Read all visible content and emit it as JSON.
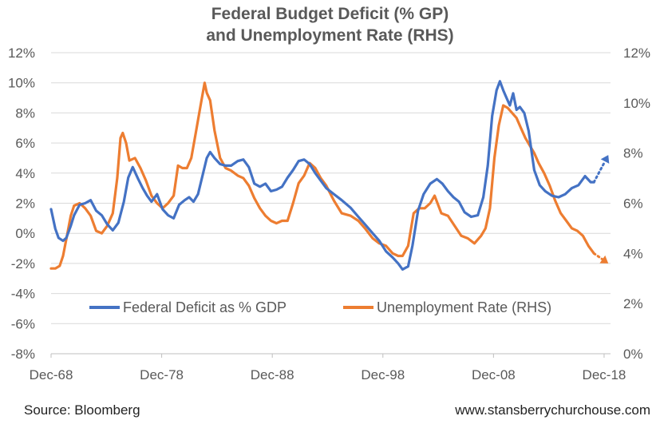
{
  "footer": {
    "source": "Source: Bloomberg",
    "website": "www.stansberrychurchouse.com"
  },
  "chart_data": {
    "type": "line",
    "title": "Federal Budget Deficit (% GP) and Unemployment Rate (RHS)",
    "title_lines": [
      "Federal Budget Deficit (% GP)",
      "and Unemployment Rate (RHS)"
    ],
    "x_range": [
      1968.92,
      2019.5
    ],
    "x_tick_labels": [
      {
        "label": "Dec-68",
        "x": 1968.92
      },
      {
        "label": "Dec-78",
        "x": 1978.92
      },
      {
        "label": "Dec-88",
        "x": 1988.92
      },
      {
        "label": "Dec-98",
        "x": 1998.92
      },
      {
        "label": "Dec-08",
        "x": 2008.92
      },
      {
        "label": "Dec-18",
        "x": 2018.92
      }
    ],
    "y_left": {
      "ylim": [
        -8,
        12
      ],
      "tick_labels": [
        "-8%",
        "-6%",
        "-4%",
        "-2%",
        "0%",
        "2%",
        "4%",
        "6%",
        "8%",
        "10%",
        "12%"
      ],
      "tick_values": [
        -8,
        -6,
        -4,
        -2,
        0,
        2,
        4,
        6,
        8,
        10,
        12
      ]
    },
    "y_right": {
      "ylim": [
        0,
        12
      ],
      "tick_labels": [
        "0%",
        "2%",
        "4%",
        "6%",
        "8%",
        "10%",
        "12%"
      ],
      "tick_values": [
        0,
        2,
        4,
        6,
        8,
        10,
        12
      ]
    },
    "grid": true,
    "legend_position": "bottom-center",
    "series": [
      {
        "name": "Federal Deficit as % GDP",
        "axis": "left",
        "color": "#4472c4",
        "x": [
          1968.92,
          1969.3,
          1969.6,
          1970.0,
          1970.3,
          1970.7,
          1971.0,
          1971.5,
          1972.0,
          1972.5,
          1973.0,
          1973.5,
          1974.0,
          1974.5,
          1975.0,
          1975.5,
          1975.9,
          1976.3,
          1976.8,
          1977.2,
          1977.6,
          1978.0,
          1978.5,
          1979.0,
          1979.5,
          1980.0,
          1980.5,
          1981.0,
          1981.4,
          1981.8,
          1982.2,
          1982.6,
          1983.0,
          1983.3,
          1983.7,
          1984.2,
          1984.7,
          1985.2,
          1985.8,
          1986.3,
          1986.8,
          1987.3,
          1987.8,
          1988.3,
          1988.8,
          1989.3,
          1989.8,
          1990.3,
          1990.8,
          1991.3,
          1991.8,
          1992.3,
          1992.8,
          1993.3,
          1993.8,
          1994.5,
          1995.2,
          1996.0,
          1996.7,
          1997.3,
          1998.0,
          1998.6,
          1999.2,
          1999.8,
          2000.3,
          2000.7,
          2001.2,
          2001.6,
          2002.1,
          2002.6,
          2003.2,
          2003.8,
          2004.3,
          2004.8,
          2005.3,
          2005.8,
          2006.3,
          2006.9,
          2007.5,
          2008.0,
          2008.4,
          2008.8,
          2009.2,
          2009.5,
          2009.8,
          2010.1,
          2010.4,
          2010.7,
          2011.0,
          2011.3,
          2011.7,
          2012.1,
          2012.6,
          2013.1,
          2013.6,
          2014.2,
          2014.8,
          2015.4,
          2016.0,
          2016.6,
          2017.2,
          2017.7,
          2018.0
        ],
        "values": [
          1.6,
          0.3,
          -0.3,
          -0.5,
          -0.3,
          0.5,
          1.2,
          1.9,
          2.0,
          2.2,
          1.5,
          1.2,
          0.6,
          0.2,
          0.7,
          2.1,
          3.7,
          4.4,
          3.6,
          3.0,
          2.5,
          2.1,
          2.6,
          1.6,
          1.2,
          1.0,
          1.9,
          2.2,
          2.4,
          2.1,
          2.6,
          3.8,
          5.0,
          5.4,
          5.0,
          4.6,
          4.5,
          4.5,
          4.8,
          4.9,
          4.4,
          3.3,
          3.1,
          3.3,
          2.8,
          2.9,
          3.1,
          3.7,
          4.2,
          4.8,
          4.9,
          4.6,
          4.0,
          3.5,
          3.0,
          2.6,
          2.2,
          1.7,
          1.1,
          0.6,
          0.0,
          -0.5,
          -1.2,
          -1.6,
          -2.0,
          -2.4,
          -2.2,
          -0.8,
          1.5,
          2.6,
          3.3,
          3.6,
          3.3,
          2.8,
          2.4,
          2.1,
          1.4,
          1.1,
          1.2,
          2.4,
          4.5,
          7.8,
          9.5,
          10.1,
          9.5,
          9.0,
          8.5,
          9.3,
          8.2,
          8.4,
          8.0,
          6.8,
          4.2,
          3.2,
          2.8,
          2.5,
          2.4,
          2.6,
          3.0,
          3.2,
          3.8,
          3.4,
          3.4
        ],
        "projection_x": [
          2018.0,
          2019.3
        ],
        "projection_values": [
          3.4,
          5.2
        ]
      },
      {
        "name": "Unemployment Rate (RHS)",
        "axis": "right",
        "color": "#ed7d31",
        "x": [
          1968.92,
          1969.3,
          1969.7,
          1970.0,
          1970.4,
          1970.7,
          1971.0,
          1971.5,
          1972.0,
          1972.5,
          1973.0,
          1973.5,
          1974.0,
          1974.5,
          1974.9,
          1975.2,
          1975.4,
          1975.7,
          1976.0,
          1976.5,
          1977.0,
          1977.5,
          1978.0,
          1978.5,
          1979.0,
          1979.5,
          1980.0,
          1980.4,
          1980.8,
          1981.2,
          1981.6,
          1982.0,
          1982.4,
          1982.8,
          1983.0,
          1983.3,
          1983.7,
          1984.2,
          1984.7,
          1985.2,
          1985.8,
          1986.3,
          1986.8,
          1987.3,
          1987.8,
          1988.3,
          1988.8,
          1989.3,
          1989.8,
          1990.3,
          1990.8,
          1991.3,
          1991.8,
          1992.3,
          1992.8,
          1993.3,
          1993.8,
          1994.5,
          1995.2,
          1996.0,
          1996.7,
          1997.3,
          1998.0,
          1998.6,
          1999.2,
          1999.8,
          2000.3,
          2000.7,
          2001.2,
          2001.7,
          2002.2,
          2002.7,
          2003.2,
          2003.6,
          2004.2,
          2004.8,
          2005.4,
          2006.0,
          2006.6,
          2007.2,
          2007.8,
          2008.2,
          2008.6,
          2009.0,
          2009.4,
          2009.8,
          2010.2,
          2010.6,
          2011.0,
          2011.4,
          2011.8,
          2012.2,
          2012.6,
          2013.0,
          2013.5,
          2014.0,
          2014.5,
          2015.0,
          2015.5,
          2016.0,
          2016.5,
          2017.0,
          2017.5,
          2018.0
        ],
        "values": [
          3.4,
          3.4,
          3.5,
          3.9,
          4.8,
          5.5,
          5.9,
          6.0,
          5.8,
          5.5,
          4.9,
          4.8,
          5.1,
          5.6,
          7.0,
          8.6,
          8.8,
          8.4,
          7.7,
          7.8,
          7.4,
          6.9,
          6.3,
          6.0,
          5.8,
          6.0,
          6.3,
          7.5,
          7.4,
          7.4,
          7.8,
          8.8,
          9.8,
          10.8,
          10.4,
          10.1,
          8.9,
          7.8,
          7.4,
          7.3,
          7.1,
          7.0,
          6.7,
          6.2,
          5.8,
          5.5,
          5.3,
          5.2,
          5.3,
          5.3,
          6.0,
          6.8,
          7.1,
          7.6,
          7.4,
          7.0,
          6.7,
          6.1,
          5.6,
          5.5,
          5.3,
          5.0,
          4.6,
          4.4,
          4.3,
          4.0,
          3.9,
          3.9,
          4.3,
          5.6,
          5.8,
          5.8,
          6.0,
          6.3,
          5.6,
          5.5,
          5.1,
          4.7,
          4.6,
          4.4,
          4.7,
          5.0,
          5.8,
          7.8,
          9.1,
          9.9,
          9.8,
          9.6,
          9.4,
          9.0,
          8.6,
          8.3,
          8.0,
          7.6,
          7.2,
          6.7,
          6.1,
          5.6,
          5.3,
          5.0,
          4.9,
          4.7,
          4.3,
          4.0
        ],
        "projection_x": [
          2018.0,
          2019.3
        ],
        "projection_values": [
          4.0,
          3.6
        ]
      }
    ]
  }
}
